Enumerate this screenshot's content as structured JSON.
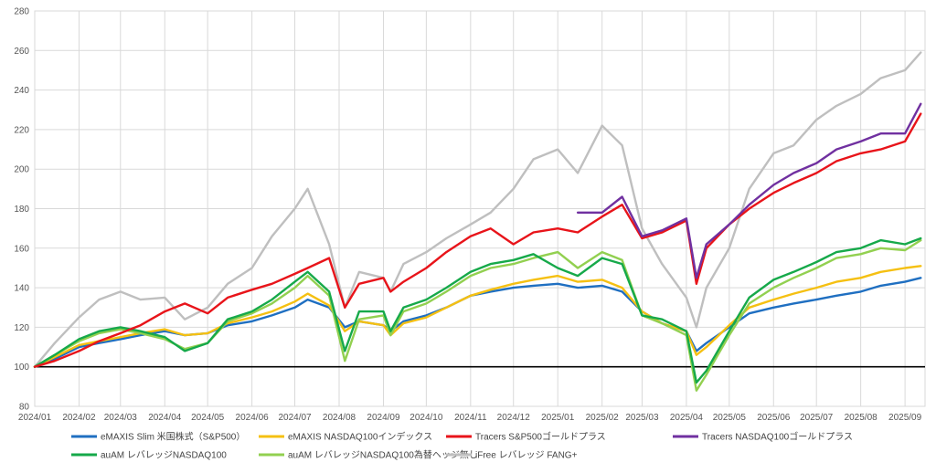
{
  "chart_data": {
    "type": "line",
    "title": "",
    "xlabel": "",
    "ylabel": "",
    "ylim": [
      80,
      280
    ],
    "yticks": [
      80,
      100,
      120,
      140,
      160,
      180,
      200,
      220,
      240,
      260,
      280
    ],
    "xlim": [
      "2024-01-01",
      "2025-09-15"
    ],
    "xticks": [
      "2024/01",
      "2024/02",
      "2024/03",
      "2024/04",
      "2024/05",
      "2024/06",
      "2024/07",
      "2024/08",
      "2024/09",
      "2024/10",
      "2024/11",
      "2024/12",
      "2025/01",
      "2025/02",
      "2025/03",
      "2025/04",
      "2025/05",
      "2025/06",
      "2025/07",
      "2025/08",
      "2025/09"
    ],
    "xtick_dates": [
      "2024-01-01",
      "2024-02-01",
      "2024-03-01",
      "2024-04-01",
      "2024-05-01",
      "2024-06-01",
      "2024-07-01",
      "2024-08-01",
      "2024-09-01",
      "2024-10-01",
      "2024-11-01",
      "2024-12-01",
      "2025-01-01",
      "2025-02-01",
      "2025-03-01",
      "2025-04-01",
      "2025-05-01",
      "2025-06-01",
      "2025-07-01",
      "2025-08-01",
      "2025-09-01"
    ],
    "grid": true,
    "legend_position": "bottom",
    "baseline": {
      "y": 100,
      "color": "#000000"
    },
    "x": [
      "2024-01-01",
      "2024-01-15",
      "2024-02-01",
      "2024-02-15",
      "2024-03-01",
      "2024-03-15",
      "2024-04-01",
      "2024-04-15",
      "2024-05-01",
      "2024-05-15",
      "2024-06-01",
      "2024-06-15",
      "2024-07-01",
      "2024-07-10",
      "2024-07-25",
      "2024-08-05",
      "2024-08-15",
      "2024-09-01",
      "2024-09-06",
      "2024-09-15",
      "2024-10-01",
      "2024-10-15",
      "2024-11-01",
      "2024-11-15",
      "2024-12-01",
      "2024-12-15",
      "2025-01-01",
      "2025-01-15",
      "2025-02-01",
      "2025-02-15",
      "2025-03-01",
      "2025-03-15",
      "2025-04-01",
      "2025-04-08",
      "2025-04-15",
      "2025-05-01",
      "2025-05-15",
      "2025-06-01",
      "2025-06-15",
      "2025-07-01",
      "2025-07-15",
      "2025-08-01",
      "2025-08-15",
      "2025-09-01",
      "2025-09-12"
    ],
    "series": [
      {
        "name": "eMAXIS Slim 米国株式（S&P500）",
        "color": "#1f6fc1",
        "values": [
          100,
          104,
          110,
          112,
          114,
          116,
          118,
          116,
          117,
          121,
          123,
          126,
          130,
          134,
          130,
          120,
          123,
          121,
          118,
          123,
          126,
          130,
          136,
          138,
          140,
          141,
          142,
          140,
          141,
          138,
          128,
          122,
          118,
          108,
          112,
          120,
          127,
          130,
          132,
          134,
          136,
          138,
          141,
          143,
          145
        ]
      },
      {
        "name": "eMAXIS NASDAQ100インデックス",
        "color": "#f5c012",
        "values": [
          100,
          105,
          111,
          113,
          115,
          117,
          119,
          116,
          117,
          122,
          125,
          128,
          133,
          137,
          131,
          118,
          123,
          121,
          116,
          122,
          125,
          130,
          136,
          139,
          142,
          144,
          146,
          143,
          144,
          140,
          128,
          122,
          118,
          106,
          110,
          121,
          130,
          134,
          137,
          140,
          143,
          145,
          148,
          150,
          151
        ]
      },
      {
        "name": "Tracers S&P500ゴールドプラス",
        "color": "#e8141a",
        "values": [
          100,
          103,
          108,
          113,
          117,
          121,
          128,
          132,
          127,
          135,
          139,
          142,
          147,
          150,
          155,
          130,
          142,
          145,
          138,
          143,
          150,
          158,
          166,
          170,
          162,
          168,
          170,
          168,
          176,
          182,
          165,
          168,
          174,
          142,
          160,
          172,
          180,
          188,
          193,
          198,
          204,
          208,
          210,
          214,
          228
        ]
      },
      {
        "name": "Tracers NASDAQ100ゴールドプラス",
        "color": "#7030a0",
        "values": [
          null,
          null,
          null,
          null,
          null,
          null,
          null,
          null,
          null,
          null,
          null,
          null,
          null,
          null,
          null,
          null,
          null,
          null,
          null,
          null,
          null,
          null,
          null,
          null,
          null,
          null,
          null,
          178,
          178,
          186,
          166,
          169,
          175,
          145,
          162,
          172,
          182,
          192,
          198,
          203,
          210,
          214,
          218,
          218,
          233
        ]
      },
      {
        "name": "auAM レバレッジNASDAQ100",
        "color": "#16a94a",
        "values": [
          100,
          106,
          114,
          118,
          120,
          118,
          115,
          108,
          112,
          124,
          128,
          134,
          143,
          148,
          138,
          108,
          128,
          128,
          118,
          130,
          134,
          140,
          148,
          152,
          154,
          157,
          150,
          146,
          155,
          152,
          126,
          124,
          118,
          92,
          98,
          118,
          135,
          144,
          148,
          153,
          158,
          160,
          164,
          162,
          165
        ]
      },
      {
        "name": "auAM レバレッジNASDAQ100為替ヘッジ無し",
        "color": "#92d050",
        "values": [
          100,
          106,
          113,
          117,
          119,
          117,
          114,
          109,
          112,
          123,
          127,
          132,
          140,
          146,
          136,
          103,
          124,
          126,
          116,
          128,
          132,
          138,
          146,
          150,
          152,
          155,
          158,
          150,
          158,
          154,
          126,
          122,
          116,
          88,
          96,
          116,
          132,
          140,
          145,
          150,
          155,
          157,
          160,
          159,
          164
        ]
      },
      {
        "name": "iFree レバレッジ FANG+",
        "color": "#bfbfbf",
        "values": [
          100,
          112,
          125,
          134,
          138,
          134,
          135,
          124,
          130,
          142,
          150,
          166,
          180,
          190,
          162,
          130,
          148,
          145,
          138,
          152,
          158,
          165,
          172,
          178,
          190,
          205,
          210,
          198,
          222,
          212,
          170,
          152,
          135,
          120,
          140,
          160,
          190,
          208,
          212,
          225,
          232,
          238,
          246,
          250,
          259
        ]
      }
    ]
  }
}
